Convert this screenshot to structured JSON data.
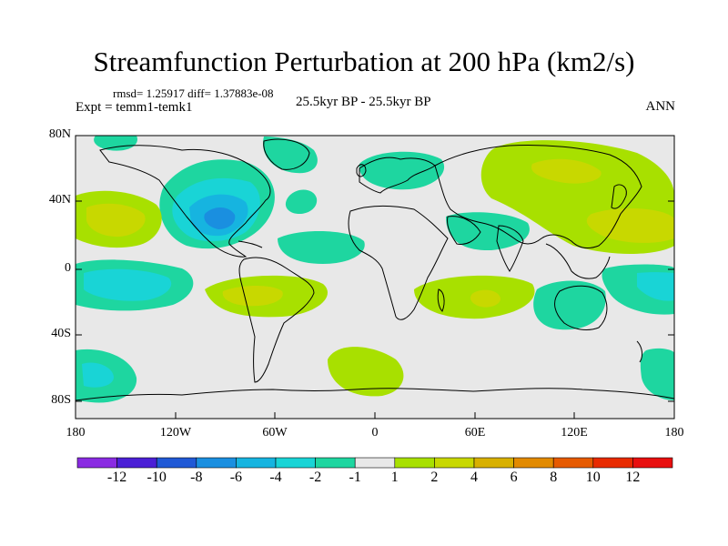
{
  "title": "Streamfunction Perturbation at 200 hPa (km2/s)",
  "stats": "rmsd= 1.25917 diff= 1.37883e-08",
  "experiment": "Expt = temm1-temk1",
  "period": "25.5kyr BP - 25.5kyr BP",
  "season": "ANN",
  "lat_ticks": [
    "80N",
    "40N",
    "0",
    "40S",
    "80S"
  ],
  "lon_ticks": [
    "180",
    "120W",
    "60W",
    "0",
    "60E",
    "120E",
    "180"
  ],
  "colorbar": {
    "labels": [
      "-12",
      "-10",
      "-8",
      "-6",
      "-4",
      "-2",
      "-1",
      "1",
      "2",
      "4",
      "6",
      "8",
      "10",
      "12"
    ],
    "colors": [
      "#8a2be2",
      "#4b1fd6",
      "#2059d6",
      "#1a8fe0",
      "#16b4e0",
      "#19d4d6",
      "#1ed6a0",
      "#e8e8e8",
      "#a8e000",
      "#c8d800",
      "#d8b000",
      "#e28a00",
      "#e65a00",
      "#e82a00",
      "#e80f0f"
    ]
  },
  "palette": {
    "background": "#e8e8e8",
    "cyan_light": "#1ed6a0",
    "cyan": "#19d4d6",
    "cyan_mid": "#16b4e0",
    "blue_light": "#1a8fe0",
    "green": "#a8e000",
    "yellow_green": "#c8d800",
    "orange": "#d8b000"
  }
}
